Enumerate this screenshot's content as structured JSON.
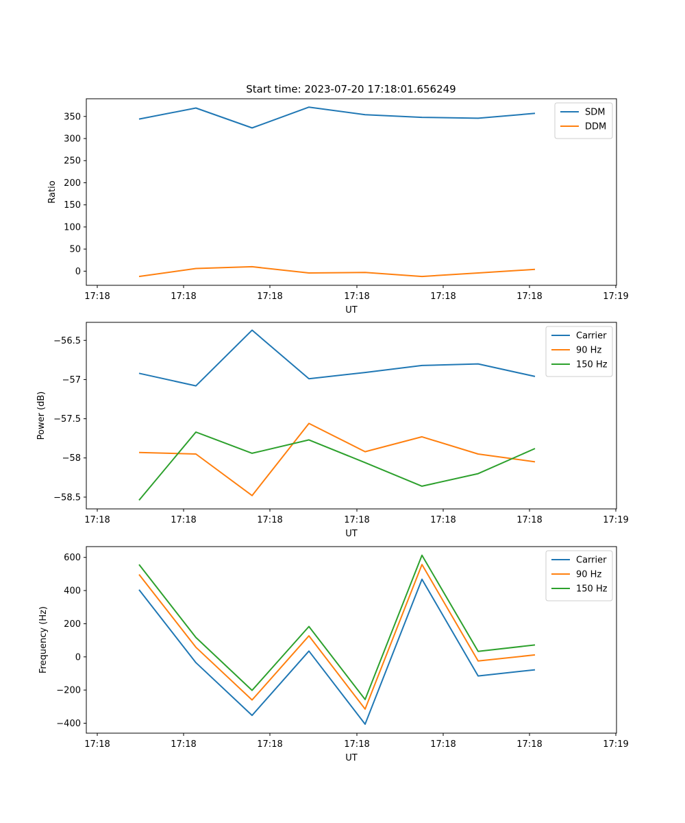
{
  "figure_title": "Start time: 2023-07-20 17:18:01.656249",
  "colors": {
    "c0": "#1f77b4",
    "c1": "#ff7f0e",
    "c2": "#2ca02c"
  },
  "chart_data": [
    {
      "type": "line",
      "title": "Start time: 2023-07-20 17:18:01.656249",
      "xlabel": "UT",
      "ylabel": "Ratio",
      "x_ticks": [
        "17:18",
        "17:18",
        "17:18",
        "17:18",
        "17:18",
        "17:18",
        "17:19"
      ],
      "y_ticks": [
        0,
        50,
        100,
        150,
        200,
        250,
        300,
        350
      ],
      "ylim": [
        -32,
        390
      ],
      "x_index": [
        1,
        2,
        3,
        4,
        5,
        6,
        7,
        8
      ],
      "legend_loc": "upper right",
      "series": [
        {
          "name": "SDM",
          "color": "#1f77b4",
          "values": [
            344,
            369,
            324,
            371,
            354,
            348,
            346,
            357
          ]
        },
        {
          "name": "DDM",
          "color": "#ff7f0e",
          "values": [
            -12,
            6,
            10,
            -4,
            -3,
            -12,
            -4,
            4
          ]
        }
      ]
    },
    {
      "type": "line",
      "title": "",
      "xlabel": "UT",
      "ylabel": "Power (dB)",
      "x_ticks": [
        "17:18",
        "17:18",
        "17:18",
        "17:18",
        "17:18",
        "17:18",
        "17:19"
      ],
      "y_ticks": [
        -56.5,
        -57.0,
        -57.5,
        -58.0,
        -58.5
      ],
      "ylim": [
        -58.65,
        -56.27
      ],
      "x_index": [
        1,
        2,
        3,
        4,
        5,
        6,
        7,
        8
      ],
      "legend_loc": "upper right",
      "series": [
        {
          "name": "Carrier",
          "color": "#1f77b4",
          "values": [
            -56.92,
            -57.08,
            -56.37,
            -56.99,
            -56.91,
            -56.82,
            -56.8,
            -56.96
          ]
        },
        {
          "name": "90 Hz",
          "color": "#ff7f0e",
          "values": [
            -57.93,
            -57.95,
            -58.48,
            -57.56,
            -57.92,
            -57.73,
            -57.95,
            -58.05
          ]
        },
        {
          "name": "150 Hz",
          "color": "#2ca02c",
          "values": [
            -58.54,
            -57.67,
            -57.94,
            -57.77,
            -58.06,
            -58.36,
            -58.2,
            -57.88
          ]
        }
      ]
    },
    {
      "type": "line",
      "title": "",
      "xlabel": "UT",
      "ylabel": "Frequency (Hz)",
      "x_ticks": [
        "17:18",
        "17:18",
        "17:18",
        "17:18",
        "17:18",
        "17:18",
        "17:19"
      ],
      "y_ticks": [
        600,
        400,
        200,
        0,
        -200,
        -400
      ],
      "ylim": [
        -460,
        665
      ],
      "x_index": [
        1,
        2,
        3,
        4,
        5,
        6,
        7,
        8
      ],
      "legend_loc": "upper right",
      "series": [
        {
          "name": "Carrier",
          "color": "#1f77b4",
          "values": [
            405,
            -35,
            -353,
            35,
            -406,
            468,
            -115,
            -78
          ]
        },
        {
          "name": "90 Hz",
          "color": "#ff7f0e",
          "values": [
            497,
            58,
            -260,
            127,
            -315,
            557,
            -25,
            12
          ]
        },
        {
          "name": "150 Hz",
          "color": "#2ca02c",
          "values": [
            557,
            117,
            -202,
            183,
            -257,
            613,
            33,
            72
          ]
        }
      ]
    }
  ]
}
